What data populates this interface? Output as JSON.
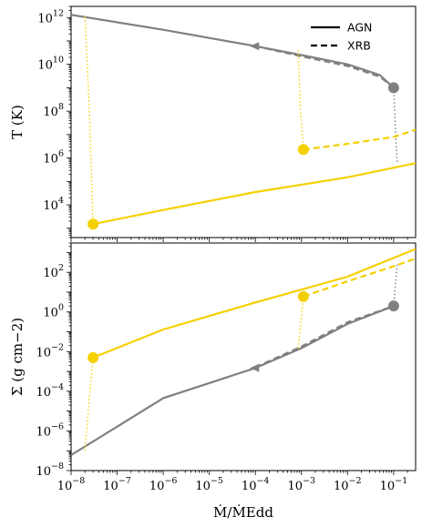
{
  "chart_data": [
    {
      "type": "line",
      "panel": "top",
      "ylabel": "T (K)",
      "yscale": "log",
      "xscale": "log",
      "xlim": [
        1e-08,
        0.3
      ],
      "ylim": [
        400,
        3000000000000.0
      ],
      "yticks": [
        {
          "value": 10000,
          "base": "10",
          "exp": "4"
        },
        {
          "value": 1000000,
          "base": "10",
          "exp": "6"
        },
        {
          "value": 100000000,
          "base": "10",
          "exp": "8"
        },
        {
          "value": 10000000000,
          "base": "10",
          "exp": "10"
        },
        {
          "value": 1000000000000,
          "base": "10",
          "exp": "12"
        }
      ],
      "legend": {
        "placement": "top-right",
        "entries": [
          {
            "label": "AGN",
            "style": "solid"
          },
          {
            "label": "XRB",
            "style": "dashed"
          }
        ]
      },
      "series": [
        {
          "color": "#808080",
          "style": "solid",
          "x": [
            1e-08,
            1e-06,
            0.0001,
            0.001,
            0.01,
            0.05,
            0.1
          ],
          "y": [
            1300000000000.0,
            300000000000.0,
            60000000000.0,
            25000000000.0,
            10000000000.0,
            3500000000.0,
            1000000000.0
          ]
        },
        {
          "color": "#808080",
          "style": "dashed",
          "x": [
            0.0001,
            0.001,
            0.01,
            0.05,
            0.1
          ],
          "y": [
            60000000000.0,
            22000000000.0,
            8500000000.0,
            3000000000.0,
            1000000000.0
          ]
        },
        {
          "color": "#808080",
          "style": "dotted",
          "x": [
            0.1,
            0.105,
            0.11,
            0.12
          ],
          "y": [
            1000000000.0,
            100000000.0,
            10000000.0,
            600000.0
          ]
        },
        {
          "color": "#f5d000",
          "style": "solid",
          "x": [
            3e-08,
            1e-06,
            0.0001,
            0.01,
            0.3
          ],
          "y": [
            1500.0,
            6000.0,
            35000.0,
            150000.0,
            600000.0
          ]
        },
        {
          "color": "#f5d000",
          "style": "dashed",
          "x": [
            0.0011,
            0.01,
            0.1,
            0.3
          ],
          "y": [
            2300000.0,
            4000000.0,
            8000000.0,
            16000000.0
          ]
        },
        {
          "color": "#f5d000",
          "style": "dotted",
          "x": [
            2e-08,
            2.5e-08,
            3e-08
          ],
          "y": [
            1100000000000.0,
            100000000.0,
            1500.0
          ]
        },
        {
          "color": "#f5d000",
          "style": "dotted",
          "x": [
            0.00085,
            0.00095,
            0.0011
          ],
          "y": [
            40000000000.0,
            100000000.0,
            2300000.0
          ]
        }
      ],
      "markers": [
        {
          "color": "#f5d000",
          "x": 3e-08,
          "y": 1500.0
        },
        {
          "color": "#f5d000",
          "x": 0.0011,
          "y": 2300000.0
        },
        {
          "color": "#808080",
          "x": 0.1,
          "y": 1000000000.0
        }
      ],
      "arrows": [
        {
          "color": "#808080",
          "x": 0.0001,
          "y": 60000000000.0,
          "direction": "left"
        }
      ]
    },
    {
      "type": "line",
      "panel": "bottom",
      "xlabel": "Ṁ/ṀEdd",
      "ylabel": "Σ (g cm−2)",
      "yscale": "log",
      "xscale": "log",
      "xlim": [
        1e-08,
        0.3
      ],
      "ylim": [
        1e-08,
        3000
      ],
      "yticks": [
        {
          "value": 1e-08,
          "base": "10",
          "exp": "−8"
        },
        {
          "value": 1e-06,
          "base": "10",
          "exp": "−6"
        },
        {
          "value": 0.0001,
          "base": "10",
          "exp": "−4"
        },
        {
          "value": 0.01,
          "base": "10",
          "exp": "−2"
        },
        {
          "value": 1,
          "base": "10",
          "exp": "0"
        },
        {
          "value": 100,
          "base": "10",
          "exp": "2"
        }
      ],
      "xticks": [
        {
          "value": 1e-08,
          "base": "10",
          "exp": "−8"
        },
        {
          "value": 1e-07,
          "base": "10",
          "exp": "−7"
        },
        {
          "value": 1e-06,
          "base": "10",
          "exp": "−6"
        },
        {
          "value": 1e-05,
          "base": "10",
          "exp": "−5"
        },
        {
          "value": 0.0001,
          "base": "10",
          "exp": "−4"
        },
        {
          "value": 0.001,
          "base": "10",
          "exp": "−3"
        },
        {
          "value": 0.01,
          "base": "10",
          "exp": "−2"
        },
        {
          "value": 0.1,
          "base": "10",
          "exp": "−1"
        }
      ],
      "series": [
        {
          "color": "#808080",
          "style": "solid",
          "x": [
            1e-08,
            1e-06,
            0.0001,
            0.001,
            0.01,
            0.1
          ],
          "y": [
            6e-08,
            4.5e-05,
            0.0015,
            0.015,
            0.25,
            2
          ]
        },
        {
          "color": "#808080",
          "style": "dashed",
          "x": [
            0.0001,
            0.001,
            0.01,
            0.1
          ],
          "y": [
            0.0016,
            0.018,
            0.3,
            2
          ]
        },
        {
          "color": "#808080",
          "style": "dotted",
          "x": [
            0.1,
            0.11,
            0.12
          ],
          "y": [
            2,
            30,
            300
          ]
        },
        {
          "color": "#f5d000",
          "style": "solid",
          "x": [
            3e-08,
            1e-06,
            0.0001,
            0.01,
            0.3
          ],
          "y": [
            0.005,
            0.13,
            3,
            60,
            1500
          ]
        },
        {
          "color": "#f5d000",
          "style": "dashed",
          "x": [
            0.0011,
            0.01,
            0.1,
            0.3
          ],
          "y": [
            6,
            35,
            200,
            500
          ]
        },
        {
          "color": "#f5d000",
          "style": "dotted",
          "x": [
            2e-08,
            2.5e-08,
            3e-08
          ],
          "y": [
            1e-07,
            5e-05,
            0.005
          ]
        },
        {
          "color": "#f5d000",
          "style": "dotted",
          "x": [
            0.00085,
            0.00095,
            0.0011
          ],
          "y": [
            0.015,
            0.2,
            6
          ]
        }
      ],
      "markers": [
        {
          "color": "#f5d000",
          "x": 3e-08,
          "y": 0.005
        },
        {
          "color": "#f5d000",
          "x": 0.0011,
          "y": 6
        },
        {
          "color": "#808080",
          "x": 0.1,
          "y": 2
        }
      ],
      "arrows": [
        {
          "color": "#808080",
          "x": 0.0001,
          "y": 0.0015,
          "direction": "left"
        }
      ]
    }
  ]
}
